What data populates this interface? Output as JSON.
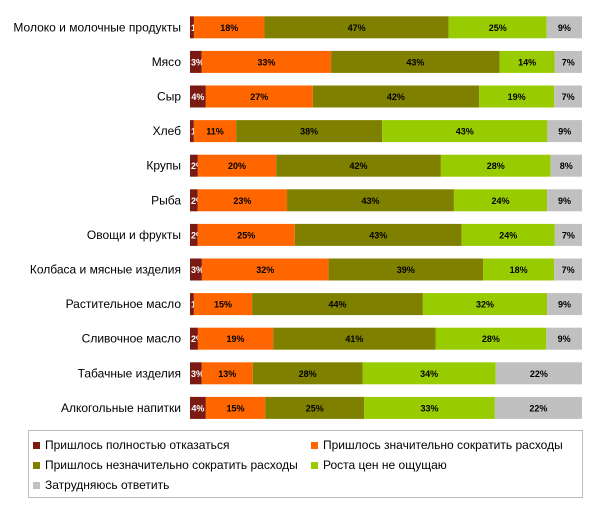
{
  "chart_data": {
    "type": "bar",
    "orientation": "horizontal",
    "stacked": true,
    "categories": [
      "Молоко и молочные продукты",
      "Мясо",
      "Сыр",
      "Хлеб",
      "Крупы",
      "Рыба",
      "Овощи и фрукты",
      "Колбаса и мясные изделия",
      "Растительное масло",
      "Сливочное масло",
      "Табачные изделия",
      "Алкогольные напитки"
    ],
    "series": [
      {
        "name": "Пришлось полностью отказаться",
        "color": "#7a1a12",
        "values": [
          1,
          3,
          4,
          1,
          2,
          2,
          2,
          3,
          1,
          2,
          3,
          4
        ]
      },
      {
        "name": "Пришлось значительно сократить расходы",
        "color": "#ff6600",
        "values": [
          18,
          33,
          27,
          11,
          20,
          23,
          25,
          32,
          15,
          19,
          13,
          15
        ]
      },
      {
        "name": "Пришлось незначительно сократить расходы",
        "color": "#808000",
        "values": [
          47,
          43,
          42,
          38,
          42,
          43,
          43,
          39,
          44,
          41,
          28,
          25
        ]
      },
      {
        "name": "Роста цен не ощущаю",
        "color": "#99cc00",
        "values": [
          25,
          14,
          19,
          43,
          28,
          24,
          24,
          18,
          32,
          28,
          34,
          33
        ]
      },
      {
        "name": "Затрудняюсь ответить",
        "color": "#c0c0c0",
        "values": [
          9,
          7,
          7,
          9,
          8,
          9,
          7,
          7,
          9,
          9,
          22,
          22
        ]
      }
    ],
    "value_suffix": "%",
    "legend_position": "bottom"
  }
}
